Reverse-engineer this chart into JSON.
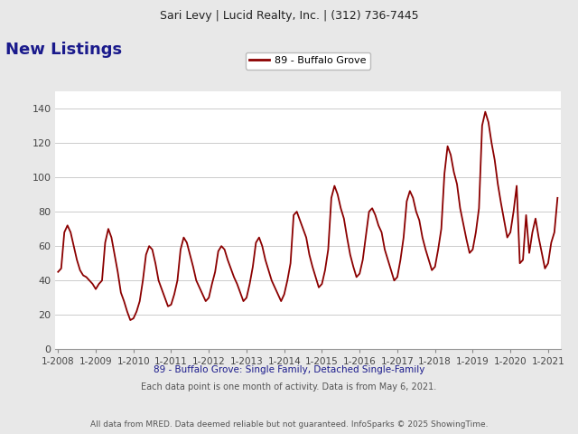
{
  "header_text": "Sari Levy | Lucid Realty, Inc. | (312) 736-7445",
  "title": "New Listings",
  "legend_label": "89 - Buffalo Grove",
  "line_color": "#8B0000",
  "subtitle": "89 - Buffalo Grove: Single Family, Detached Single-Family",
  "caption1": "Each data point is one month of activity. Data is from May 6, 2021.",
  "caption2": "All data from MRED. Data deemed reliable but not guaranteed. InfoSparks © 2025 ShowingTime.",
  "title_color": "#1a1a8c",
  "subtitle_color": "#1a1a8c",
  "background_color": "#e8e8e8",
  "plot_bg_color": "#ffffff",
  "ylim": [
    0,
    150
  ],
  "yticks": [
    0,
    20,
    40,
    60,
    80,
    100,
    120,
    140
  ],
  "x_tick_labels": [
    "1-2008",
    "1-2009",
    "1-2010",
    "1-2011",
    "1-2012",
    "1-2013",
    "1-2014",
    "1-2015",
    "1-2016",
    "1-2017",
    "1-2018",
    "1-2019",
    "1-2020",
    "1-2021"
  ],
  "monthly_data": [
    45,
    47,
    68,
    72,
    68,
    60,
    52,
    46,
    43,
    42,
    40,
    38,
    35,
    38,
    40,
    62,
    70,
    65,
    55,
    45,
    33,
    28,
    22,
    17,
    18,
    22,
    28,
    40,
    55,
    60,
    58,
    50,
    40,
    35,
    30,
    25,
    26,
    32,
    40,
    58,
    65,
    62,
    55,
    48,
    40,
    36,
    32,
    28,
    30,
    38,
    45,
    57,
    60,
    58,
    52,
    47,
    42,
    38,
    33,
    28,
    30,
    38,
    48,
    62,
    65,
    60,
    52,
    46,
    40,
    36,
    32,
    28,
    32,
    40,
    50,
    78,
    80,
    75,
    70,
    65,
    55,
    48,
    42,
    36,
    38,
    46,
    58,
    88,
    95,
    90,
    82,
    76,
    65,
    55,
    48,
    42,
    44,
    52,
    66,
    80,
    82,
    78,
    72,
    68,
    58,
    52,
    46,
    40,
    42,
    52,
    65,
    86,
    92,
    88,
    80,
    75,
    65,
    58,
    52,
    46,
    48,
    58,
    70,
    102,
    118,
    113,
    103,
    96,
    82,
    73,
    64,
    56,
    58,
    68,
    82,
    130,
    138,
    132,
    120,
    110,
    96,
    85,
    75,
    65,
    68,
    80,
    95,
    50,
    52,
    78,
    56,
    68,
    76,
    65,
    56,
    47,
    50,
    62,
    68,
    88
  ]
}
